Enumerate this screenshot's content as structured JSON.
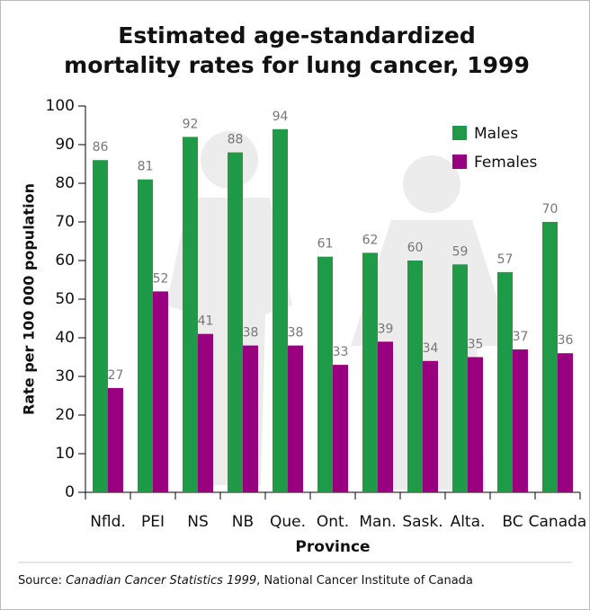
{
  "chart_data": {
    "type": "bar",
    "title": [
      "Estimated age-standardized",
      "mortality rates for lung cancer, 1999"
    ],
    "x_label": "Province",
    "y_label": "Rate per 100 000 population",
    "categories": [
      "Nfld.",
      "PEI",
      "NS",
      "NB",
      "Que.",
      "Ont.",
      "Man.",
      "Sask.",
      "Alta.",
      "BC",
      "Canada"
    ],
    "series": [
      {
        "name": "Males",
        "color": "#1f9a48",
        "values": [
          86,
          81,
          92,
          88,
          94,
          61,
          62,
          60,
          59,
          57,
          70
        ]
      },
      {
        "name": "Females",
        "color": "#990080",
        "values": [
          27,
          52,
          41,
          38,
          38,
          33,
          39,
          34,
          35,
          37,
          36
        ]
      }
    ],
    "ylim": [
      0,
      100
    ],
    "yticks": [
      0,
      10,
      20,
      30,
      40,
      50,
      60,
      70,
      80,
      90,
      100
    ],
    "legend": "upper right",
    "source_prefix": "Source:",
    "source_title": "Canadian Cancer Statistics 1999",
    "source_suffix": ", National Cancer Institute of Canada"
  }
}
